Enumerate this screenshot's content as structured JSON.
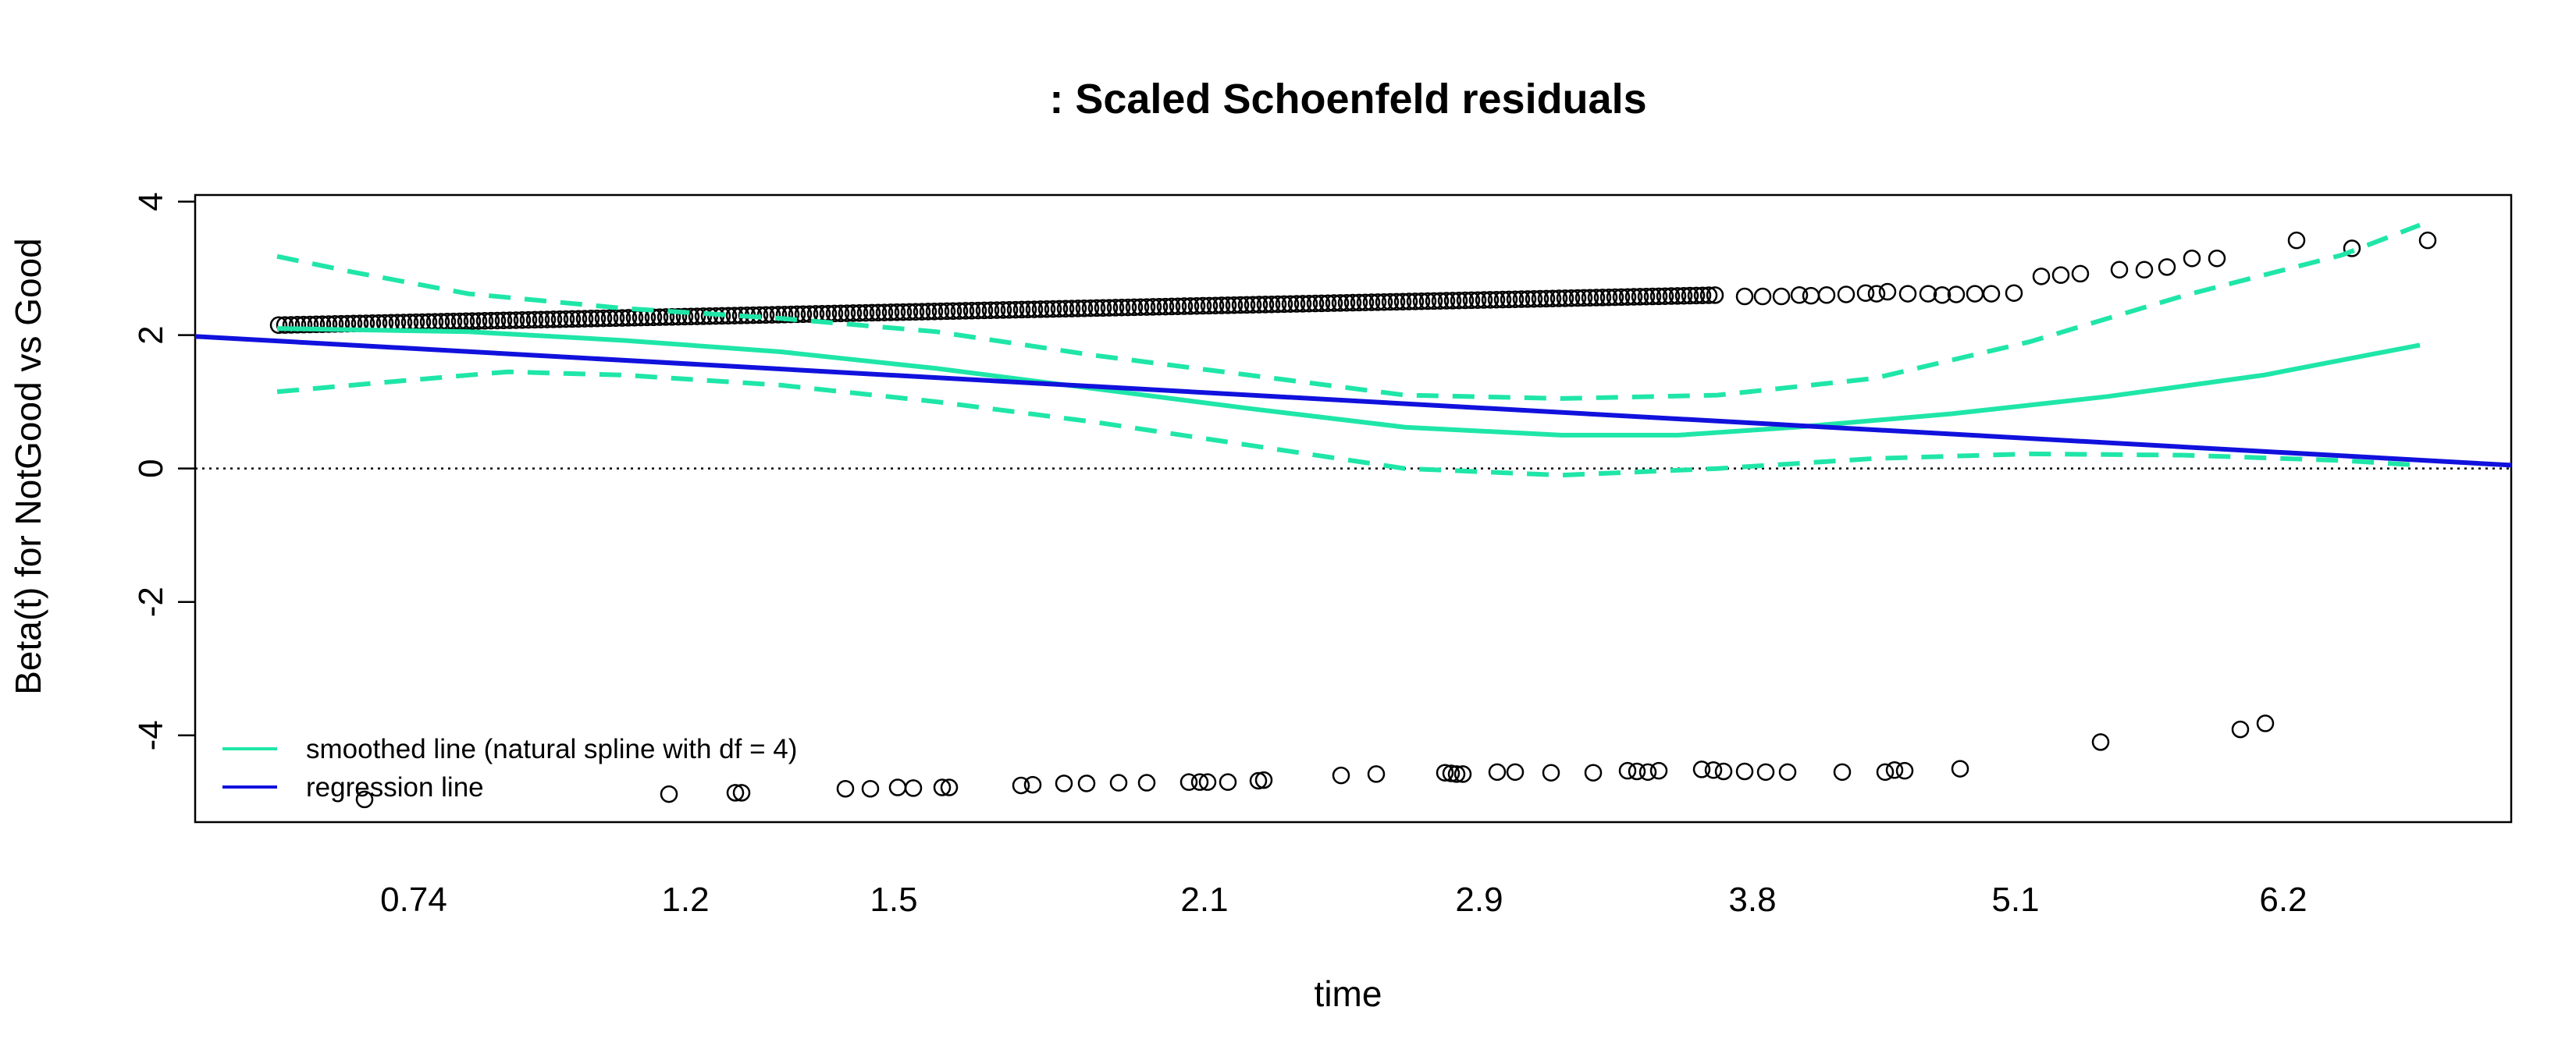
{
  "chart_data": {
    "type": "scatter",
    "title": ": Scaled Schoenfeld residuals",
    "xlabel": "time",
    "ylabel": "Beta(t) for NotGood vs Good",
    "x_tick_labels": [
      "0.74",
      "1.2",
      "1.5",
      "2.1",
      "2.9",
      "3.8",
      "5.1",
      "6.2"
    ],
    "y_ticks": [
      4,
      2,
      0,
      -2,
      -4
    ],
    "y_tick_labels": [
      "4",
      "2",
      "0",
      "-2",
      "-4"
    ],
    "ylim": [
      -5.3,
      4.1
    ],
    "x_scale": "transformed (km); ticks at time quantiles",
    "reference_line": {
      "y": 0,
      "style": "dotted"
    },
    "legend": {
      "position": "bottom-left",
      "entries": [
        {
          "label": "smoothed line (natural spline with df = 4)",
          "color": "#1fe6a8"
        },
        {
          "label": "regression line",
          "color": "#1111dd"
        }
      ]
    },
    "series": [
      {
        "name": "residuals",
        "kind": "points",
        "color": "#000000",
        "x": [
          0.4,
          0.41,
          0.42,
          0.43,
          0.44,
          0.45,
          0.46,
          0.47,
          0.48,
          0.49,
          0.5,
          0.51,
          0.52,
          0.53,
          0.54,
          0.55,
          0.56,
          0.57,
          0.58,
          0.59,
          0.6,
          0.61,
          0.62,
          0.63,
          0.64,
          0.65,
          0.66,
          0.67,
          0.68,
          0.69,
          0.7,
          0.71,
          0.72,
          0.73,
          0.74,
          0.76,
          0.78,
          0.8,
          0.82,
          0.84,
          0.86,
          0.88,
          0.9,
          0.92,
          0.94,
          0.96,
          0.98,
          1.0,
          1.02,
          1.04,
          1.06,
          1.08,
          1.1,
          1.12,
          1.14,
          1.16,
          1.18,
          1.2,
          1.22,
          1.24,
          1.26,
          1.28,
          1.3,
          1.32,
          1.34,
          1.36,
          1.38,
          1.4,
          1.42,
          1.44,
          1.46,
          1.48,
          1.5,
          1.52,
          1.54,
          1.56,
          1.58,
          1.6,
          1.62,
          1.64,
          1.66,
          1.68,
          1.7,
          1.72,
          1.74,
          1.76,
          1.78,
          1.8,
          1.82,
          1.84,
          1.86,
          1.88,
          1.9,
          1.92,
          1.94,
          1.96,
          1.98,
          2.0,
          2.02,
          2.04,
          2.06,
          2.08,
          2.1,
          2.12,
          2.14,
          2.16,
          2.18,
          2.2,
          2.22,
          2.24,
          2.26,
          2.28,
          2.3,
          2.32,
          2.34,
          2.36,
          2.38,
          2.4,
          2.42,
          2.44,
          2.46,
          2.48,
          2.5,
          2.52,
          2.54,
          2.56,
          2.58,
          2.6,
          2.62,
          2.64,
          2.66,
          2.68,
          2.7,
          2.72,
          2.74,
          2.76,
          2.78,
          2.8,
          2.82,
          2.84,
          2.86,
          2.88,
          2.9,
          2.92,
          2.94,
          2.96,
          2.98,
          3.0,
          3.02,
          3.04,
          3.06,
          3.08,
          3.1,
          3.12,
          3.14,
          3.16,
          3.18,
          3.2,
          3.22,
          3.24,
          3.26,
          3.28,
          3.3,
          3.32,
          3.34,
          3.36,
          3.38,
          3.4,
          3.42,
          3.44,
          3.46,
          3.48,
          3.5,
          3.52,
          3.54,
          3.56,
          3.58,
          3.6,
          3.62,
          3.64,
          3.66,
          3.68,
          3.7,
          3.72,
          3.74,
          3.76,
          3.78,
          3.8,
          3.82,
          3.84,
          3.86,
          3.88,
          3.9,
          3.92,
          3.94,
          3.96,
          3.98,
          4.0,
          4.02,
          4.04,
          4.06,
          4.08,
          4.1,
          4.12,
          4.14,
          4.16,
          4.18,
          4.2,
          4.22,
          4.24,
          4.26,
          4.28,
          4.3,
          4.32,
          4.34,
          4.36,
          4.38,
          4.4,
          4.42,
          4.44,
          4.46,
          4.48,
          4.5,
          4.52,
          4.54,
          4.56,
          4.58,
          4.6,
          4.62,
          4.64,
          4.66,
          4.68,
          4.7,
          4.72,
          4.74,
          4.76,
          4.78,
          4.8,
          4.82,
          4.84,
          4.86,
          4.88,
          4.9,
          4.92,
          4.94,
          4.96,
          4.98,
          5.0,
          5.02,
          5.04,
          5.06,
          5.08,
          5.1,
          5.12,
          5.14,
          5.16,
          5.18,
          5.2,
          5.22,
          5.24,
          5.26,
          5.28,
          5.3,
          5.32,
          5.34,
          5.36,
          5.38,
          5.4,
          5.42,
          5.44,
          5.46,
          5.48,
          5.5,
          5.52,
          5.54,
          5.56,
          5.58,
          5.6,
          5.62,
          5.64,
          5.66,
          5.68,
          5.7,
          5.72,
          5.74,
          5.76,
          5.78,
          5.8,
          5.82,
          5.84,
          5.86,
          5.88,
          5.9,
          5.92,
          5.94,
          5.96,
          5.98,
          6.0,
          6.02,
          6.04,
          6.06,
          6.08,
          6.1,
          6.12,
          6.14,
          6.16,
          6.18,
          6.2,
          6.22,
          6.24,
          6.26,
          6.28,
          6.3,
          6.32,
          6.34,
          6.36,
          6.38,
          6.4,
          6.42,
          6.44,
          6.46,
          6.48,
          6.5,
          6.52,
          6.54,
          6.56,
          6.58,
          6.6,
          6.62,
          6.64,
          6.66,
          6.68,
          6.7
        ],
        "y": [
          2.15,
          2.14,
          2.16,
          2.15,
          2.15,
          2.16,
          2.14,
          2.16,
          2.15,
          2.16,
          2.16,
          2.17,
          2.16,
          2.17,
          2.16,
          2.17,
          2.17,
          2.18,
          2.17,
          2.18,
          2.17,
          2.17,
          2.18,
          2.18,
          2.18,
          2.18,
          2.19,
          2.18,
          2.19,
          2.19,
          2.19,
          2.2,
          2.19,
          2.2,
          2.2,
          2.19,
          2.2,
          2.2,
          2.21,
          2.21,
          2.21,
          2.22,
          2.22,
          2.22,
          2.23,
          2.23,
          2.23,
          2.24,
          2.24,
          2.24,
          2.25,
          2.25,
          2.25,
          2.26,
          2.26,
          2.26,
          2.27,
          2.27,
          2.27,
          2.28,
          2.28,
          2.28,
          2.29,
          2.29,
          2.29,
          2.3,
          2.3,
          2.3,
          2.31,
          2.31,
          2.31,
          2.32,
          2.32,
          2.32,
          2.33,
          2.33,
          2.33,
          2.34,
          2.34,
          2.34,
          2.35,
          2.35,
          2.35,
          2.36,
          2.36,
          2.36,
          2.37,
          2.37,
          2.37,
          2.38,
          2.38,
          2.38,
          2.39,
          2.39,
          2.39,
          2.4,
          2.4,
          2.4,
          2.41,
          2.41,
          2.41,
          2.42,
          2.42,
          2.42,
          2.43,
          2.43,
          2.43,
          2.44,
          2.44,
          2.44,
          2.45,
          2.45,
          2.45,
          2.46,
          2.46,
          2.46,
          2.47,
          2.47,
          2.47,
          2.48,
          2.48,
          2.48,
          2.49,
          2.49,
          2.49,
          2.5,
          2.5,
          2.5,
          2.51,
          2.51,
          2.51,
          2.52,
          2.52,
          2.52,
          2.53,
          2.53,
          2.53,
          2.54,
          2.54,
          2.54,
          2.55,
          2.55,
          2.55,
          2.56,
          2.56,
          2.56,
          2.57,
          2.57,
          2.57,
          2.58,
          2.58,
          2.58,
          2.55,
          2.56,
          2.57,
          2.58,
          2.55,
          2.56,
          2.57,
          2.58,
          2.59,
          2.6,
          2.55,
          2.56,
          2.57,
          2.58,
          2.59,
          2.6,
          2.61,
          2.62,
          2.63,
          2.64,
          2.58,
          2.59,
          2.6,
          2.61,
          2.62,
          2.63,
          2.64,
          2.65,
          2.66,
          2.6,
          2.61,
          2.62,
          2.58,
          2.59,
          2.6,
          2.61,
          2.62,
          2.63,
          2.64,
          2.65,
          2.66,
          2.67,
          2.58,
          2.59,
          2.6,
          2.61,
          2.62,
          2.63,
          2.64,
          2.65,
          2.66,
          2.67,
          2.68,
          2.6,
          2.61,
          2.62,
          2.63,
          2.64,
          2.65,
          2.66,
          2.67,
          2.68,
          2.69,
          2.7,
          2.6,
          2.61,
          2.62,
          2.63,
          2.64,
          2.65,
          2.66,
          2.62,
          2.63,
          2.64,
          2.65,
          2.66,
          2.8,
          2.85,
          2.9,
          2.95,
          3.0,
          2.9,
          2.95,
          3.0,
          3.05,
          3.1,
          3.15,
          3.0,
          3.05,
          3.1,
          3.15,
          3.2,
          3.25,
          3.3,
          3.35,
          3.4,
          3.45,
          3.3,
          3.35,
          3.4,
          3.45,
          3.3,
          3.35,
          3.4,
          3.45,
          3.4,
          3.45,
          3.4,
          3.45,
          3.4,
          3.42,
          3.44,
          3.46,
          3.48,
          3.5,
          3.4,
          3.42,
          3.44,
          3.46,
          3.48,
          3.5,
          3.4,
          3.42,
          3.44,
          3.46,
          3.48,
          3.5,
          3.4,
          3.42,
          3.44,
          3.46,
          3.48,
          3.5,
          3.4,
          3.42,
          3.44,
          3.46,
          3.48,
          3.5,
          3.4,
          3.42,
          3.44,
          3.46,
          3.48,
          3.5,
          3.4,
          3.42,
          3.44,
          3.46,
          3.48,
          3.5,
          3.4,
          3.42,
          3.44,
          3.46,
          3.48,
          3.5,
          3.4,
          3.42,
          3.44,
          3.46,
          3.48,
          3.5,
          3.4,
          3.42,
          3.44,
          3.46,
          3.48,
          3.5,
          3.4,
          3.42,
          3.44,
          3.46,
          3.48,
          3.5,
          3.4,
          3.42,
          3.44,
          3.46,
          3.48,
          3.5
        ]
      }
    ]
  },
  "colors": {
    "smooth_line": "#1fe6a8",
    "regression_line": "#1111dd",
    "points": "#000000"
  }
}
